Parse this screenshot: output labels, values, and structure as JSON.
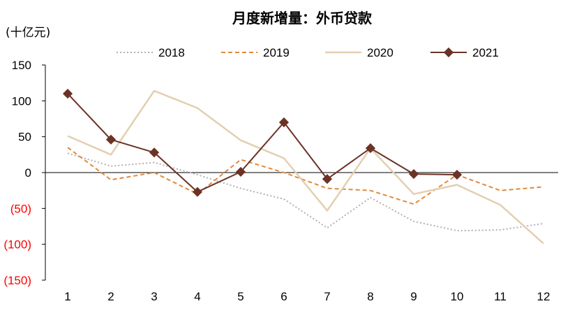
{
  "chart_data": {
    "type": "line",
    "title": "月度新增量：外币贷款",
    "unit_label": "(十亿元)",
    "x": [
      1,
      2,
      3,
      4,
      5,
      6,
      7,
      8,
      9,
      10,
      11,
      12
    ],
    "x_tick_labels": [
      "1",
      "2",
      "3",
      "4",
      "5",
      "6",
      "7",
      "8",
      "9",
      "10",
      "11",
      "12"
    ],
    "y_tick_labels": [
      "150",
      "100",
      "50",
      "0",
      "(50)",
      "(100)",
      "(150)"
    ],
    "y_ticks": [
      150,
      100,
      50,
      0,
      -50,
      -100,
      -150
    ],
    "ylim": [
      -150,
      150
    ],
    "series": [
      {
        "name": "2018",
        "style": "dotted",
        "color": "#b0b0b8",
        "values": [
          27,
          9,
          14,
          -3,
          -22,
          -37,
          -77,
          -35,
          -68,
          -81,
          -80,
          -71
        ]
      },
      {
        "name": "2019",
        "style": "dashed",
        "color": "#e08a3c",
        "values": [
          35,
          -10,
          0,
          -30,
          18,
          0,
          -22,
          -25,
          -44,
          -3,
          -25,
          -20
        ]
      },
      {
        "name": "2020",
        "style": "solid",
        "color": "#e3cfb0",
        "values": [
          51,
          25,
          114,
          90,
          45,
          20,
          -53,
          34,
          -30,
          -17,
          -45,
          -99
        ]
      },
      {
        "name": "2021",
        "style": "solid-marker",
        "color": "#6b3226",
        "values": [
          110,
          46,
          28,
          -27,
          1,
          70,
          -9,
          34,
          -2,
          -3,
          null,
          null
        ]
      }
    ]
  }
}
